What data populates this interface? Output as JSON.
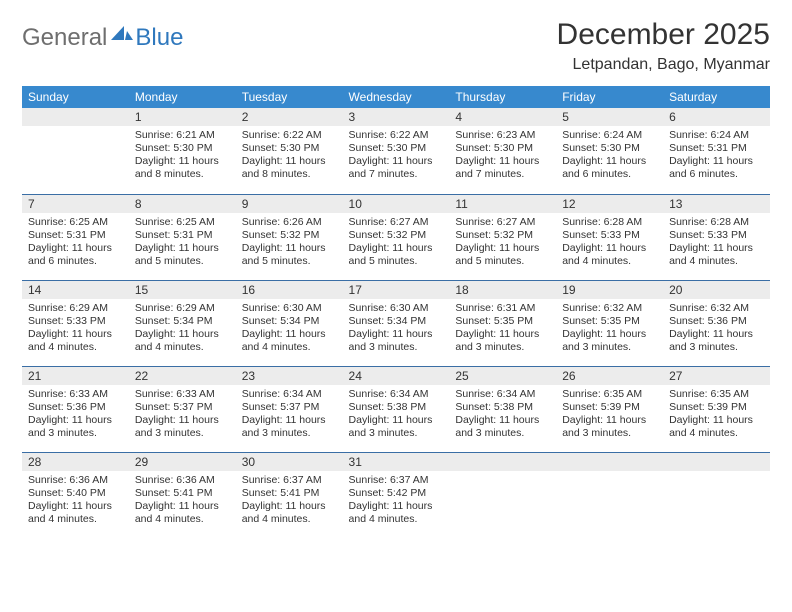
{
  "logo": {
    "word1": "General",
    "word2": "Blue"
  },
  "header": {
    "month_year": "December 2025",
    "location": "Letpandan, Bago, Myanmar"
  },
  "colors": {
    "header_bg": "#3789ce",
    "rule": "#3a6ea5",
    "daynum_bg": "#ececec",
    "logo_gray": "#6e6e6e",
    "logo_blue": "#2f78bd",
    "text": "#333333",
    "page_bg": "#ffffff"
  },
  "weekdays": [
    "Sunday",
    "Monday",
    "Tuesday",
    "Wednesday",
    "Thursday",
    "Friday",
    "Saturday"
  ],
  "weeks": [
    [
      null,
      {
        "n": "1",
        "sr": "Sunrise: 6:21 AM",
        "ss": "Sunset: 5:30 PM",
        "dl": "Daylight: 11 hours and 8 minutes."
      },
      {
        "n": "2",
        "sr": "Sunrise: 6:22 AM",
        "ss": "Sunset: 5:30 PM",
        "dl": "Daylight: 11 hours and 8 minutes."
      },
      {
        "n": "3",
        "sr": "Sunrise: 6:22 AM",
        "ss": "Sunset: 5:30 PM",
        "dl": "Daylight: 11 hours and 7 minutes."
      },
      {
        "n": "4",
        "sr": "Sunrise: 6:23 AM",
        "ss": "Sunset: 5:30 PM",
        "dl": "Daylight: 11 hours and 7 minutes."
      },
      {
        "n": "5",
        "sr": "Sunrise: 6:24 AM",
        "ss": "Sunset: 5:30 PM",
        "dl": "Daylight: 11 hours and 6 minutes."
      },
      {
        "n": "6",
        "sr": "Sunrise: 6:24 AM",
        "ss": "Sunset: 5:31 PM",
        "dl": "Daylight: 11 hours and 6 minutes."
      }
    ],
    [
      {
        "n": "7",
        "sr": "Sunrise: 6:25 AM",
        "ss": "Sunset: 5:31 PM",
        "dl": "Daylight: 11 hours and 6 minutes."
      },
      {
        "n": "8",
        "sr": "Sunrise: 6:25 AM",
        "ss": "Sunset: 5:31 PM",
        "dl": "Daylight: 11 hours and 5 minutes."
      },
      {
        "n": "9",
        "sr": "Sunrise: 6:26 AM",
        "ss": "Sunset: 5:32 PM",
        "dl": "Daylight: 11 hours and 5 minutes."
      },
      {
        "n": "10",
        "sr": "Sunrise: 6:27 AM",
        "ss": "Sunset: 5:32 PM",
        "dl": "Daylight: 11 hours and 5 minutes."
      },
      {
        "n": "11",
        "sr": "Sunrise: 6:27 AM",
        "ss": "Sunset: 5:32 PM",
        "dl": "Daylight: 11 hours and 5 minutes."
      },
      {
        "n": "12",
        "sr": "Sunrise: 6:28 AM",
        "ss": "Sunset: 5:33 PM",
        "dl": "Daylight: 11 hours and 4 minutes."
      },
      {
        "n": "13",
        "sr": "Sunrise: 6:28 AM",
        "ss": "Sunset: 5:33 PM",
        "dl": "Daylight: 11 hours and 4 minutes."
      }
    ],
    [
      {
        "n": "14",
        "sr": "Sunrise: 6:29 AM",
        "ss": "Sunset: 5:33 PM",
        "dl": "Daylight: 11 hours and 4 minutes."
      },
      {
        "n": "15",
        "sr": "Sunrise: 6:29 AM",
        "ss": "Sunset: 5:34 PM",
        "dl": "Daylight: 11 hours and 4 minutes."
      },
      {
        "n": "16",
        "sr": "Sunrise: 6:30 AM",
        "ss": "Sunset: 5:34 PM",
        "dl": "Daylight: 11 hours and 4 minutes."
      },
      {
        "n": "17",
        "sr": "Sunrise: 6:30 AM",
        "ss": "Sunset: 5:34 PM",
        "dl": "Daylight: 11 hours and 3 minutes."
      },
      {
        "n": "18",
        "sr": "Sunrise: 6:31 AM",
        "ss": "Sunset: 5:35 PM",
        "dl": "Daylight: 11 hours and 3 minutes."
      },
      {
        "n": "19",
        "sr": "Sunrise: 6:32 AM",
        "ss": "Sunset: 5:35 PM",
        "dl": "Daylight: 11 hours and 3 minutes."
      },
      {
        "n": "20",
        "sr": "Sunrise: 6:32 AM",
        "ss": "Sunset: 5:36 PM",
        "dl": "Daylight: 11 hours and 3 minutes."
      }
    ],
    [
      {
        "n": "21",
        "sr": "Sunrise: 6:33 AM",
        "ss": "Sunset: 5:36 PM",
        "dl": "Daylight: 11 hours and 3 minutes."
      },
      {
        "n": "22",
        "sr": "Sunrise: 6:33 AM",
        "ss": "Sunset: 5:37 PM",
        "dl": "Daylight: 11 hours and 3 minutes."
      },
      {
        "n": "23",
        "sr": "Sunrise: 6:34 AM",
        "ss": "Sunset: 5:37 PM",
        "dl": "Daylight: 11 hours and 3 minutes."
      },
      {
        "n": "24",
        "sr": "Sunrise: 6:34 AM",
        "ss": "Sunset: 5:38 PM",
        "dl": "Daylight: 11 hours and 3 minutes."
      },
      {
        "n": "25",
        "sr": "Sunrise: 6:34 AM",
        "ss": "Sunset: 5:38 PM",
        "dl": "Daylight: 11 hours and 3 minutes."
      },
      {
        "n": "26",
        "sr": "Sunrise: 6:35 AM",
        "ss": "Sunset: 5:39 PM",
        "dl": "Daylight: 11 hours and 3 minutes."
      },
      {
        "n": "27",
        "sr": "Sunrise: 6:35 AM",
        "ss": "Sunset: 5:39 PM",
        "dl": "Daylight: 11 hours and 4 minutes."
      }
    ],
    [
      {
        "n": "28",
        "sr": "Sunrise: 6:36 AM",
        "ss": "Sunset: 5:40 PM",
        "dl": "Daylight: 11 hours and 4 minutes."
      },
      {
        "n": "29",
        "sr": "Sunrise: 6:36 AM",
        "ss": "Sunset: 5:41 PM",
        "dl": "Daylight: 11 hours and 4 minutes."
      },
      {
        "n": "30",
        "sr": "Sunrise: 6:37 AM",
        "ss": "Sunset: 5:41 PM",
        "dl": "Daylight: 11 hours and 4 minutes."
      },
      {
        "n": "31",
        "sr": "Sunrise: 6:37 AM",
        "ss": "Sunset: 5:42 PM",
        "dl": "Daylight: 11 hours and 4 minutes."
      },
      null,
      null,
      null
    ]
  ]
}
